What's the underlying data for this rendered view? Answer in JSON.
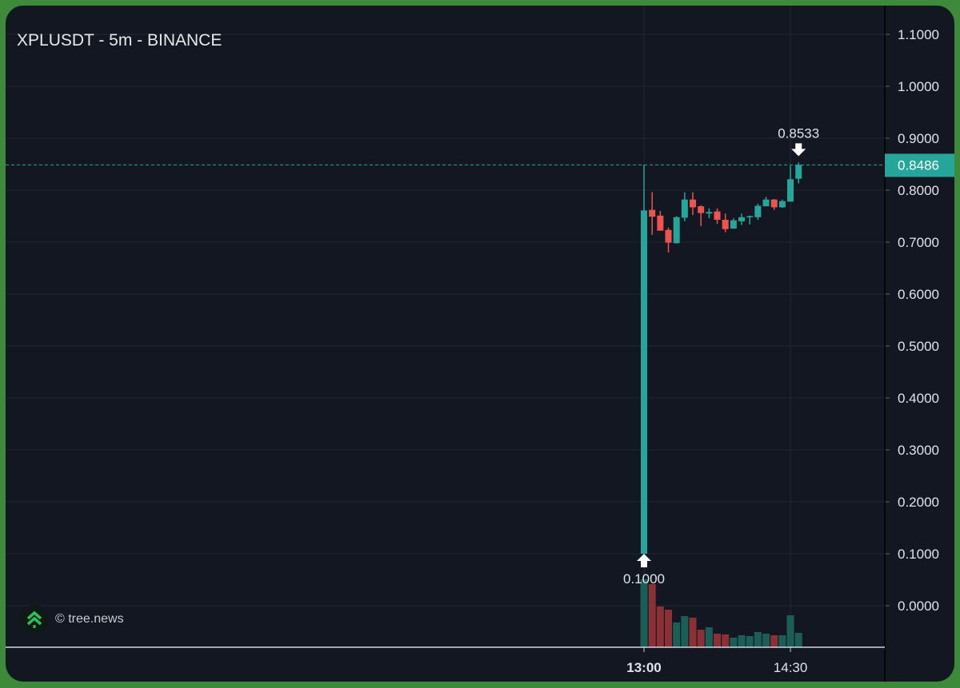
{
  "header": {
    "title": "XPLUSDT - 5m - BINANCE"
  },
  "brand": {
    "text": "© tree.news",
    "icon": "tree-chevrons-icon"
  },
  "colors": {
    "up": "#26a69a",
    "down": "#ef5350",
    "up_volume": "#1b5e57",
    "down_volume": "#8b3135",
    "background": "#131722",
    "frame": "#3d8b3a",
    "grid": "#232736",
    "text": "#e0e3eb"
  },
  "chart_data": {
    "type": "candlestick",
    "title": "XPLUSDT - 5m - BINANCE",
    "x_ticks": [
      {
        "label": "13:00",
        "index": 0,
        "bold": true
      },
      {
        "label": "14:30",
        "index": 18,
        "bold": false
      }
    ],
    "y_ticks": [
      "0.0000",
      "0.1000",
      "0.2000",
      "0.3000",
      "0.4000",
      "0.5000",
      "0.6000",
      "0.7000",
      "0.8000",
      "0.9000",
      "1.0000",
      "1.1000"
    ],
    "ylim": [
      -0.08,
      1.16
    ],
    "grid": true,
    "last_price": {
      "label": "0.8486",
      "value": 0.8486
    },
    "annotations": [
      {
        "label": "0.8533",
        "value": 0.8533,
        "index": 19,
        "arrow": "down"
      },
      {
        "label": "0.1000",
        "value": 0.1,
        "index": 0,
        "arrow": "up"
      }
    ],
    "candles": [
      {
        "time": "13:00",
        "o": 0.1,
        "h": 0.8486,
        "l": 0.1,
        "c": 0.761,
        "v": 85
      },
      {
        "time": "13:05",
        "o": 0.762,
        "h": 0.796,
        "l": 0.714,
        "c": 0.749,
        "v": 79
      },
      {
        "time": "13:10",
        "o": 0.751,
        "h": 0.76,
        "l": 0.722,
        "c": 0.722,
        "v": 51
      },
      {
        "time": "13:15",
        "o": 0.7235,
        "h": 0.728,
        "l": 0.68,
        "c": 0.699,
        "v": 47
      },
      {
        "time": "13:20",
        "o": 0.698,
        "h": 0.75,
        "l": 0.697,
        "c": 0.748,
        "v": 31
      },
      {
        "time": "13:25",
        "o": 0.747,
        "h": 0.796,
        "l": 0.74,
        "c": 0.782,
        "v": 39
      },
      {
        "time": "13:30",
        "o": 0.782,
        "h": 0.796,
        "l": 0.752,
        "c": 0.767,
        "v": 37
      },
      {
        "time": "13:35",
        "o": 0.769,
        "h": 0.771,
        "l": 0.731,
        "c": 0.756,
        "v": 22
      },
      {
        "time": "13:40",
        "o": 0.755,
        "h": 0.765,
        "l": 0.746,
        "c": 0.758,
        "v": 25
      },
      {
        "time": "13:45",
        "o": 0.759,
        "h": 0.765,
        "l": 0.735,
        "c": 0.743,
        "v": 17
      },
      {
        "time": "13:50",
        "o": 0.743,
        "h": 0.755,
        "l": 0.719,
        "c": 0.725,
        "v": 16
      },
      {
        "time": "13:55",
        "o": 0.726,
        "h": 0.746,
        "l": 0.726,
        "c": 0.742,
        "v": 12
      },
      {
        "time": "14:00",
        "o": 0.74,
        "h": 0.755,
        "l": 0.733,
        "c": 0.748,
        "v": 15
      },
      {
        "time": "14:05",
        "o": 0.748,
        "h": 0.751,
        "l": 0.734,
        "c": 0.75,
        "v": 14
      },
      {
        "time": "14:10",
        "o": 0.748,
        "h": 0.774,
        "l": 0.743,
        "c": 0.77,
        "v": 19
      },
      {
        "time": "14:15",
        "o": 0.769,
        "h": 0.787,
        "l": 0.769,
        "c": 0.782,
        "v": 17
      },
      {
        "time": "14:20",
        "o": 0.782,
        "h": 0.783,
        "l": 0.762,
        "c": 0.767,
        "v": 15
      },
      {
        "time": "14:25",
        "o": 0.767,
        "h": 0.782,
        "l": 0.766,
        "c": 0.779,
        "v": 15
      },
      {
        "time": "14:30",
        "o": 0.778,
        "h": 0.847,
        "l": 0.778,
        "c": 0.821,
        "v": 40
      },
      {
        "time": "14:35",
        "o": 0.822,
        "h": 0.8533,
        "l": 0.813,
        "c": 0.8486,
        "v": 18
      }
    ]
  }
}
